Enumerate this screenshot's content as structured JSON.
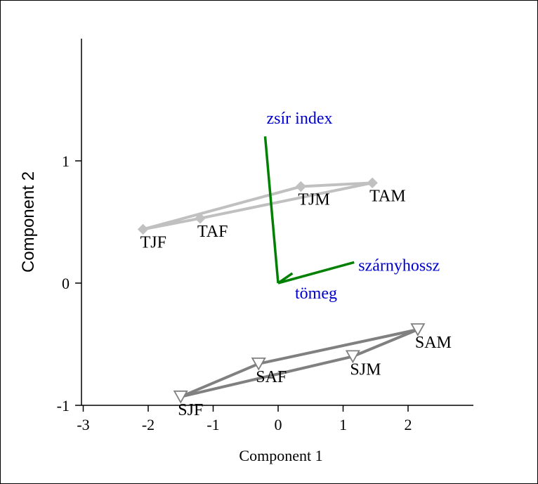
{
  "chart_data": {
    "type": "scatter",
    "title": "",
    "xlabel": "Component 1",
    "ylabel": "Component 2",
    "xlim": [
      -3,
      3
    ],
    "ylim": [
      -1,
      2
    ],
    "xticks": [
      "-3",
      "-2",
      "-1",
      "0",
      "1",
      "2"
    ],
    "yticks": [
      "-1",
      "0",
      "1"
    ],
    "groups": [
      {
        "marker": "diamond",
        "color": "#c0c0c0",
        "points": [
          {
            "label": "TJF",
            "x": -2.08,
            "y": 0.44
          },
          {
            "label": "TAF",
            "x": -1.2,
            "y": 0.53
          },
          {
            "label": "TJM",
            "x": 0.35,
            "y": 0.79
          },
          {
            "label": "TAM",
            "x": 1.45,
            "y": 0.82
          }
        ]
      },
      {
        "marker": "triangle-down",
        "color": "#808080",
        "points": [
          {
            "label": "SJF",
            "x": -1.5,
            "y": -0.93
          },
          {
            "label": "SAF",
            "x": -0.3,
            "y": -0.66
          },
          {
            "label": "SJM",
            "x": 1.15,
            "y": -0.6
          },
          {
            "label": "SAM",
            "x": 2.15,
            "y": -0.38
          }
        ]
      }
    ],
    "vectors": [
      {
        "label": "zsír index",
        "x": -0.2,
        "y": 1.2
      },
      {
        "label": "szárnyhossz",
        "x": 1.17,
        "y": 0.17
      },
      {
        "label": "tömeg",
        "x": 0.22,
        "y": 0.08
      }
    ],
    "vector_color": "#008000",
    "vector_label_color": "#0000cc"
  }
}
